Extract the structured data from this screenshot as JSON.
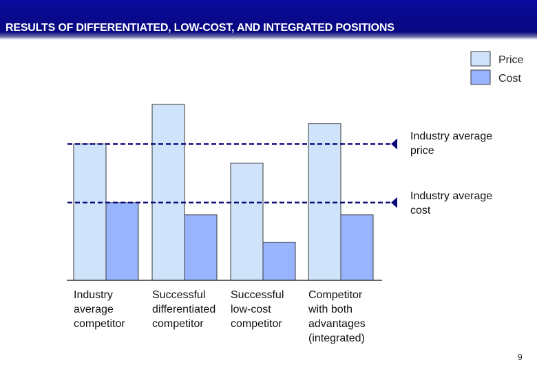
{
  "title": "RESULTS OF DIFFERENTIATED, LOW-COST, AND INTEGRATED POSITIONS",
  "page_number": "9",
  "colors": {
    "title_bar": "#0a0a9e",
    "price": "#cfe3fb",
    "cost": "#99b4ff",
    "bar_stroke": "#3a3a3a",
    "reference_line": "#0a0a7a"
  },
  "chart_data": {
    "type": "bar",
    "title": "RESULTS OF DIFFERENTIATED, LOW-COST, AND INTEGRATED POSITIONS",
    "categories": [
      "Industry average competitor",
      "Successful differentiated competitor",
      "Successful low-cost competitor",
      "Competitor with both advantages (integrated)"
    ],
    "series": [
      {
        "name": "Price",
        "values": [
          100,
          129,
          86,
          115
        ]
      },
      {
        "name": "Cost",
        "values": [
          57,
          48,
          28,
          48
        ]
      }
    ],
    "reference_lines": [
      {
        "label": "Industry average price",
        "value": 100
      },
      {
        "label": "Industry average cost",
        "value": 57
      }
    ],
    "legend": [
      "Price",
      "Cost"
    ],
    "legend_position": "top-right",
    "ylim": [
      0,
      130
    ],
    "grid": false,
    "xlabel": "",
    "ylabel": ""
  }
}
